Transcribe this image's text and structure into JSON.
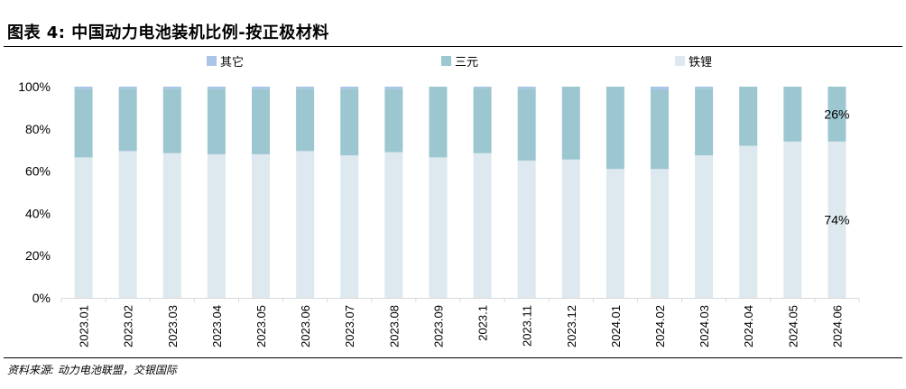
{
  "header": {
    "title": "图表 4: 中国动力电池装机比例-按正极材料"
  },
  "footer": {
    "source": "资料来源: 动力电池联盟，交银国际"
  },
  "colors": {
    "other": "#a9c6e8",
    "ternary": "#9cc6d0",
    "lfp": "#dde9ee",
    "axis": "#d9d9d9"
  },
  "chart_data": {
    "type": "bar",
    "stacked": true,
    "title": "中国动力电池装机比例-按正极材料",
    "xlabel": "",
    "ylabel": "",
    "ylim": [
      0,
      100
    ],
    "yticks": [
      "0%",
      "20%",
      "40%",
      "60%",
      "80%",
      "100%"
    ],
    "legend_position": "top",
    "categories": [
      "2023.01",
      "2023.02",
      "2023.03",
      "2023.04",
      "2023.05",
      "2023.06",
      "2023.07",
      "2023.08",
      "2023.09",
      "2023.1",
      "2023.11",
      "2023.12",
      "2024.01",
      "2024.02",
      "2024.03",
      "2024.04",
      "2024.05",
      "2024.06"
    ],
    "series": [
      {
        "name": "铁锂",
        "key": "lfp",
        "values": [
          66.5,
          69.5,
          68.5,
          68.0,
          68.0,
          69.5,
          67.5,
          69.0,
          66.5,
          68.5,
          65.0,
          65.5,
          61.0,
          61.0,
          67.5,
          72.0,
          74.0,
          74.0
        ]
      },
      {
        "name": "三元",
        "key": "ternary",
        "values": [
          32.5,
          29.5,
          30.5,
          31.0,
          31.0,
          29.5,
          31.5,
          30.0,
          33.5,
          31.0,
          34.0,
          34.5,
          39.0,
          37.5,
          31.5,
          28.0,
          26.0,
          26.0
        ]
      },
      {
        "name": "其它",
        "key": "other",
        "values": [
          1.0,
          1.0,
          1.0,
          1.0,
          1.0,
          1.0,
          1.0,
          1.0,
          0.0,
          0.5,
          1.0,
          0.0,
          0.0,
          1.5,
          1.0,
          0.0,
          0.0,
          0.0
        ]
      }
    ],
    "legend_order": [
      "其它",
      "三元",
      "铁锂"
    ],
    "annotations": [
      {
        "category": "2024.06",
        "series": "三元",
        "text": "26%"
      },
      {
        "category": "2024.06",
        "series": "铁锂",
        "text": "74%"
      }
    ]
  }
}
